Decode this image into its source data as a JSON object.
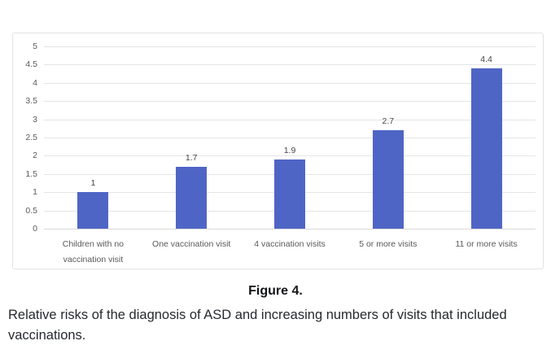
{
  "figure": {
    "caption_title": "Figure 4.",
    "caption_body": "Relative risks of the diagnosis of ASD and increasing numbers of visits that included vaccinations."
  },
  "colors": {
    "bar": "#4f65c5",
    "gridline": "#e5e5e5",
    "baseline": "#d9d9d9",
    "axis_text": "#595959",
    "data_label": "#444444",
    "card_border": "#e2e3e5"
  },
  "chart_data": {
    "type": "bar",
    "title": "",
    "xlabel": "",
    "ylabel": "",
    "categories": [
      "Children with no vaccination visit",
      "One vaccination visit",
      "4 vaccination visits",
      "5 or more visits",
      "11 or more visits"
    ],
    "values": [
      1,
      1.7,
      1.9,
      2.7,
      4.4
    ],
    "data_labels": [
      "1",
      "1.7",
      "1.9",
      "2.7",
      "4.4"
    ],
    "ylim": [
      0,
      5
    ],
    "ytick_step": 0.5,
    "yticks": [
      "0",
      "0.5",
      "1",
      "1.5",
      "2",
      "2.5",
      "3",
      "3.5",
      "4",
      "4.5",
      "5"
    ],
    "grid": true,
    "legend": false
  }
}
